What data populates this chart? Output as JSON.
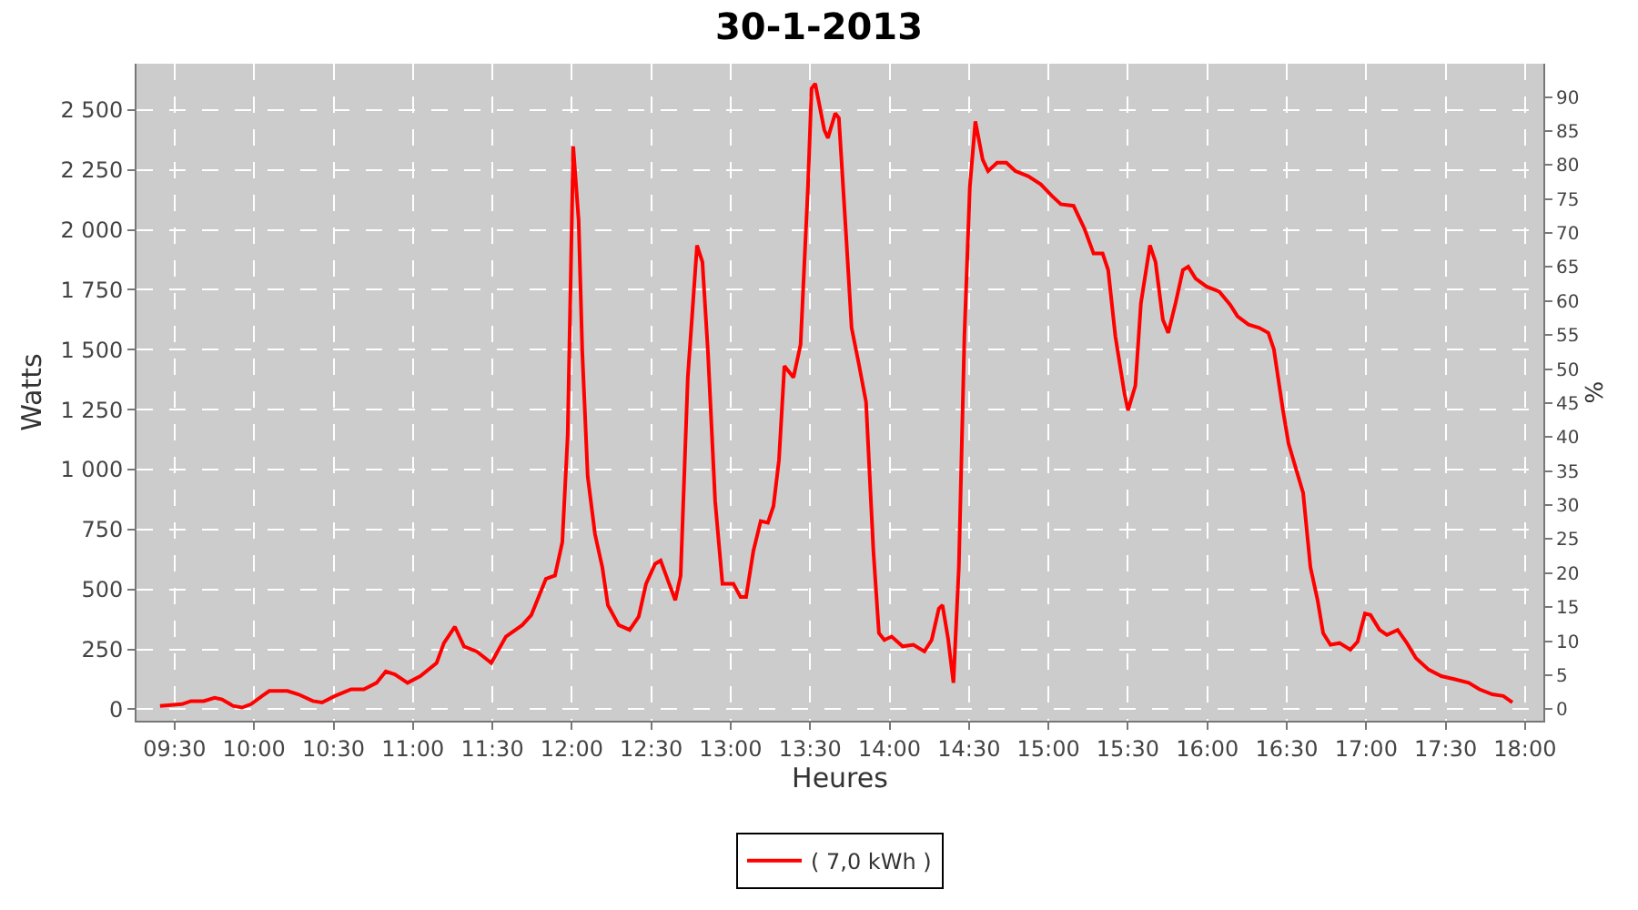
{
  "chart_data": {
    "type": "line",
    "title": "30-1-2013",
    "xlabel": "Heures",
    "ylabel": "Watts",
    "y2label": "%",
    "xlim": [
      9.26,
      18.115
    ],
    "xticks": [
      {
        "value": 9.5,
        "label": "09:30"
      },
      {
        "value": 10,
        "label": "10:00"
      },
      {
        "value": 10.5,
        "label": "10:30"
      },
      {
        "value": 11,
        "label": "11:00"
      },
      {
        "value": 11.5,
        "label": "11:30"
      },
      {
        "value": 12,
        "label": "12:00"
      },
      {
        "value": 12.5,
        "label": "12:30"
      },
      {
        "value": 13,
        "label": "13:00"
      },
      {
        "value": 13.5,
        "label": "13:30"
      },
      {
        "value": 14,
        "label": "14:00"
      },
      {
        "value": 14.5,
        "label": "14:30"
      },
      {
        "value": 15,
        "label": "15:00"
      },
      {
        "value": 15.5,
        "label": "15:30"
      },
      {
        "value": 16,
        "label": "16:00"
      },
      {
        "value": 16.5,
        "label": "16:30"
      },
      {
        "value": 17,
        "label": "17:00"
      },
      {
        "value": 17.5,
        "label": "17:30"
      },
      {
        "value": 18,
        "label": "18:00"
      }
    ],
    "ylim": [
      -48,
      2693
    ],
    "yticks": [
      0,
      250,
      500,
      750,
      {
        "value": 1000,
        "label": "1 000"
      },
      {
        "value": 1250,
        "label": "1 250"
      },
      {
        "value": 1500,
        "label": "1 500"
      },
      {
        "value": 1750,
        "label": "1 750"
      },
      {
        "value": 2000,
        "label": "2 000"
      },
      {
        "value": 2250,
        "label": "2 250"
      },
      {
        "value": 2500,
        "label": "2 500"
      }
    ],
    "y2lim": [
      -1.7,
      94.9
    ],
    "y2ticks": [
      0,
      5,
      10,
      15,
      20,
      25,
      30,
      35,
      40,
      45,
      50,
      55,
      60,
      65,
      70,
      75,
      80,
      85,
      90
    ],
    "grid": true,
    "legend": "bottom",
    "line_style": "solid",
    "series": [
      {
        "name": "( 7,0 kWh )",
        "color": "#ff0000",
        "x": [
          9.408,
          9.546,
          9.603,
          9.683,
          9.752,
          9.798,
          9.867,
          9.924,
          9.981,
          10.05,
          10.096,
          10.21,
          10.279,
          10.37,
          10.428,
          10.508,
          10.611,
          10.691,
          10.771,
          10.829,
          10.886,
          10.966,
          11.046,
          11.149,
          11.195,
          11.264,
          11.321,
          11.402,
          11.493,
          11.585,
          11.688,
          11.745,
          11.837,
          11.894,
          11.94,
          11.974,
          12.009,
          12.043,
          12.066,
          12.1,
          12.146,
          12.192,
          12.227,
          12.295,
          12.364,
          12.421,
          12.467,
          12.524,
          12.559,
          12.605,
          12.651,
          12.685,
          12.73,
          12.788,
          12.822,
          12.857,
          12.902,
          12.948,
          13.017,
          13.062,
          13.097,
          13.143,
          13.189,
          13.234,
          13.269,
          13.304,
          13.338,
          13.395,
          13.44,
          13.486,
          13.509,
          13.532,
          13.589,
          13.612,
          13.658,
          13.681,
          13.727,
          13.761,
          13.807,
          13.852,
          13.898,
          13.933,
          13.967,
          14.013,
          14.082,
          14.15,
          14.219,
          14.265,
          14.31,
          14.333,
          14.368,
          14.402,
          14.436,
          14.471,
          14.505,
          14.54,
          14.586,
          14.62,
          14.677,
          14.735,
          14.792,
          14.872,
          14.952,
          15.021,
          15.078,
          15.158,
          15.227,
          15.284,
          15.341,
          15.376,
          15.421,
          15.479,
          15.501,
          15.547,
          15.582,
          15.639,
          15.674,
          15.72,
          15.754,
          15.8,
          15.846,
          15.88,
          15.926,
          15.995,
          16.075,
          16.144,
          16.19,
          16.259,
          16.327,
          16.384,
          16.419,
          16.476,
          16.511,
          16.557,
          16.603,
          16.649,
          16.694,
          16.729,
          16.775,
          16.832,
          16.9,
          16.946,
          16.992,
          17.027,
          17.084,
          17.13,
          17.198,
          17.256,
          17.313,
          17.393,
          17.473,
          17.565,
          17.645,
          17.713,
          17.794,
          17.863,
          17.92
        ],
        "values": [
          14,
          21,
          34,
          34,
          48,
          41,
          14,
          7,
          21,
          55,
          76,
          76,
          62,
          34,
          28,
          55,
          83,
          83,
          110,
          158,
          145,
          110,
          138,
          193,
          276,
          344,
          262,
          241,
          193,
          303,
          351,
          393,
          544,
          558,
          696,
          1143,
          2348,
          2039,
          1488,
          971,
          730,
          592,
          434,
          351,
          331,
          386,
          523,
          606,
          620,
          537,
          455,
          558,
          1384,
          1935,
          1866,
          1488,
          868,
          523,
          523,
          468,
          468,
          661,
          785,
          778,
          847,
          1040,
          1432,
          1384,
          1522,
          2176,
          2590,
          2610,
          2417,
          2383,
          2486,
          2466,
          1970,
          1591,
          1439,
          1281,
          661,
          317,
          289,
          303,
          262,
          269,
          241,
          289,
          420,
          434,
          296,
          110,
          592,
          1556,
          2176,
          2452,
          2293,
          2245,
          2280,
          2280,
          2245,
          2224,
          2190,
          2142,
          2107,
          2100,
          2004,
          1901,
          1901,
          1832,
          1556,
          1315,
          1247,
          1350,
          1694,
          1935,
          1866,
          1625,
          1570,
          1694,
          1832,
          1846,
          1797,
          1763,
          1742,
          1687,
          1639,
          1605,
          1591,
          1570,
          1501,
          1247,
          1109,
          1005,
          902,
          592,
          455,
          317,
          269,
          276,
          248,
          282,
          399,
          393,
          331,
          310,
          331,
          276,
          213,
          165,
          138,
          124,
          110,
          83,
          62,
          55,
          28
        ]
      }
    ]
  }
}
